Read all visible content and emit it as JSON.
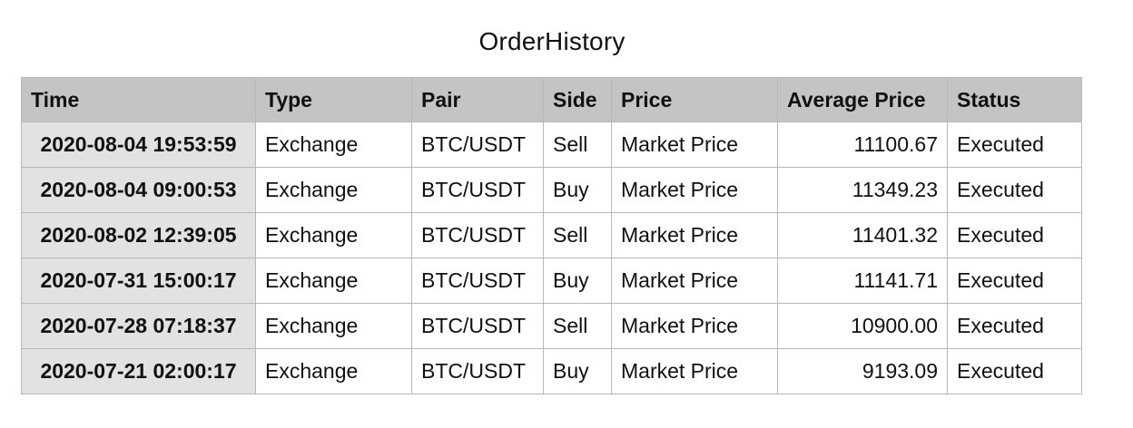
{
  "title": "OrderHistory",
  "columns": [
    "Time",
    "Type",
    "Pair",
    "Side",
    "Price",
    "Average Price",
    "Status"
  ],
  "rows": [
    {
      "time": "2020-08-04 19:53:59",
      "type": "Exchange",
      "pair": "BTC/USDT",
      "side": "Sell",
      "price": "Market Price",
      "avg_price": "11100.67",
      "status": "Executed"
    },
    {
      "time": "2020-08-04 09:00:53",
      "type": "Exchange",
      "pair": "BTC/USDT",
      "side": "Buy",
      "price": "Market Price",
      "avg_price": "11349.23",
      "status": "Executed"
    },
    {
      "time": "2020-08-02 12:39:05",
      "type": "Exchange",
      "pair": "BTC/USDT",
      "side": "Sell",
      "price": "Market Price",
      "avg_price": "11401.32",
      "status": "Executed"
    },
    {
      "time": "2020-07-31 15:00:17",
      "type": "Exchange",
      "pair": "BTC/USDT",
      "side": "Buy",
      "price": "Market Price",
      "avg_price": "11141.71",
      "status": "Executed"
    },
    {
      "time": "2020-07-28 07:18:37",
      "type": "Exchange",
      "pair": "BTC/USDT",
      "side": "Sell",
      "price": "Market Price",
      "avg_price": "10900.00",
      "status": "Executed"
    },
    {
      "time": "2020-07-21 02:00:17",
      "type": "Exchange",
      "pair": "BTC/USDT",
      "side": "Buy",
      "price": "Market Price",
      "avg_price": "9193.09",
      "status": "Executed"
    }
  ]
}
